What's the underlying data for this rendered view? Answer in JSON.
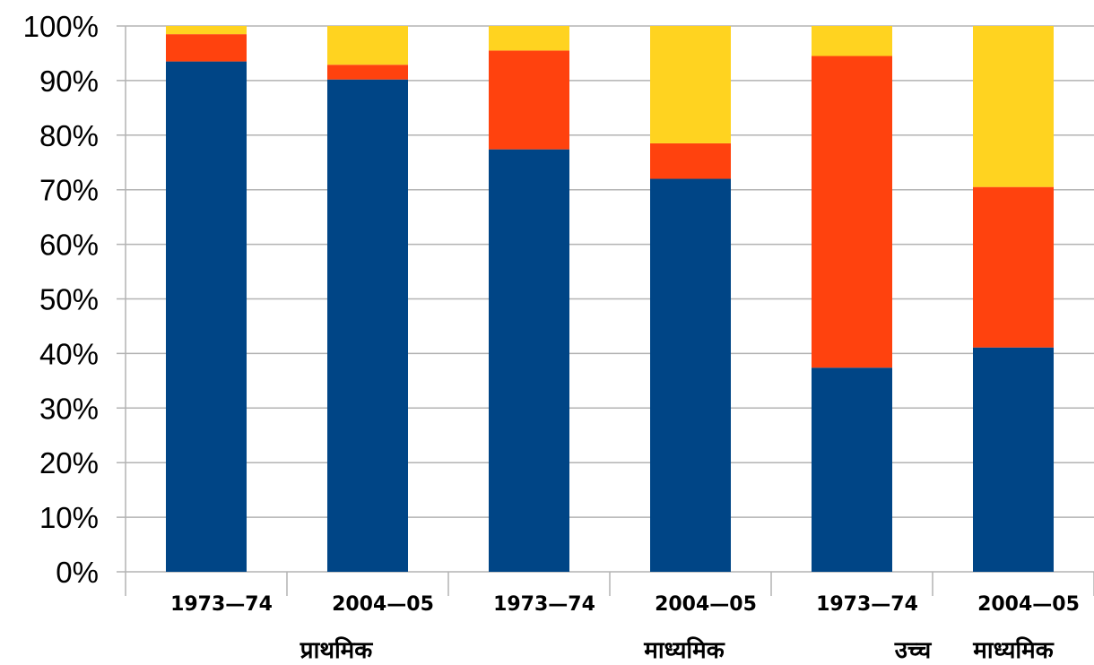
{
  "chart_data": {
    "type": "bar",
    "stacked": true,
    "categories": [
      "1973—74",
      "2004—05",
      "1973—74",
      "2004—05",
      "1973—74",
      "2004—05"
    ],
    "category_groups": [
      "प्राथमिक",
      "माध्यमिक",
      "उच्च",
      "माध्यमिक"
    ],
    "series": [
      {
        "values": [
          93.5,
          90.2,
          77.4,
          72.0,
          37.4,
          41.1
        ]
      },
      {
        "values": [
          5.0,
          2.7,
          18.1,
          6.5,
          57.1,
          29.4
        ]
      },
      {
        "values": [
          1.5,
          7.1,
          4.5,
          21.5,
          5.5,
          29.5
        ]
      }
    ],
    "colors": [
      "#004586",
      "#ff420e",
      "#ffd320"
    ],
    "ylim": [
      0,
      100
    ],
    "yticks": [
      "0%",
      "10%",
      "20%",
      "30%",
      "40%",
      "50%",
      "60%",
      "70%",
      "80%",
      "90%",
      "100%"
    ],
    "grid": true,
    "legend": "none"
  }
}
